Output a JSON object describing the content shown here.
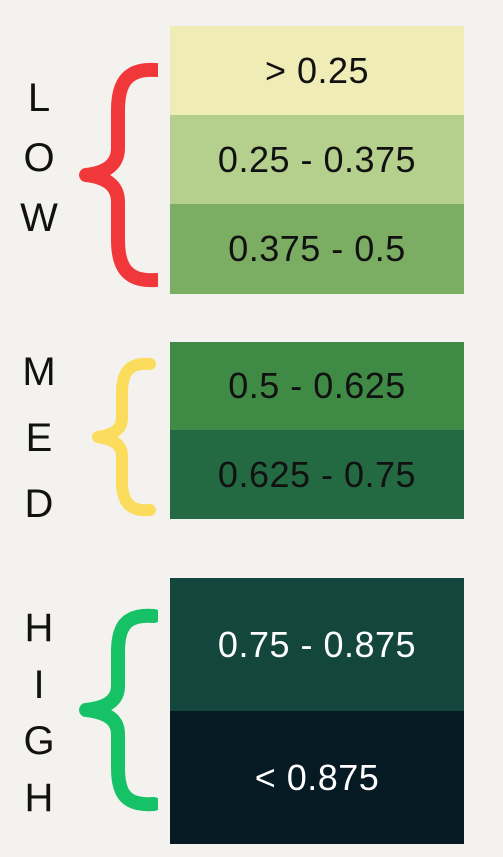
{
  "groups": [
    {
      "letters": [
        "L",
        "O",
        "W"
      ],
      "brace_color": "#f0383a",
      "cells": [
        {
          "label": "> 0.25",
          "color": "#efecb6",
          "text_color": "#111111"
        },
        {
          "label": "0.25 - 0.375",
          "color": "#b5cf8d",
          "text_color": "#111111"
        },
        {
          "label": "0.375 - 0.5",
          "color": "#7bad62",
          "text_color": "#111111"
        }
      ]
    },
    {
      "letters": [
        "M",
        "E",
        "D"
      ],
      "brace_color": "#fbdc5c",
      "cells": [
        {
          "label": "0.5 - 0.625",
          "color": "#3f8b45",
          "text_color": "#111111"
        },
        {
          "label": "0.625 - 0.75",
          "color": "#236a42",
          "text_color": "#111111"
        }
      ]
    },
    {
      "letters": [
        "H",
        "I",
        "G",
        "H"
      ],
      "brace_color": "#17c266",
      "cells": [
        {
          "label": "0.75 - 0.875",
          "color": "#13473e",
          "text_color": "#ffffff"
        },
        {
          "label": "< 0.875",
          "color": "#061a23",
          "text_color": "#ffffff"
        }
      ]
    }
  ]
}
